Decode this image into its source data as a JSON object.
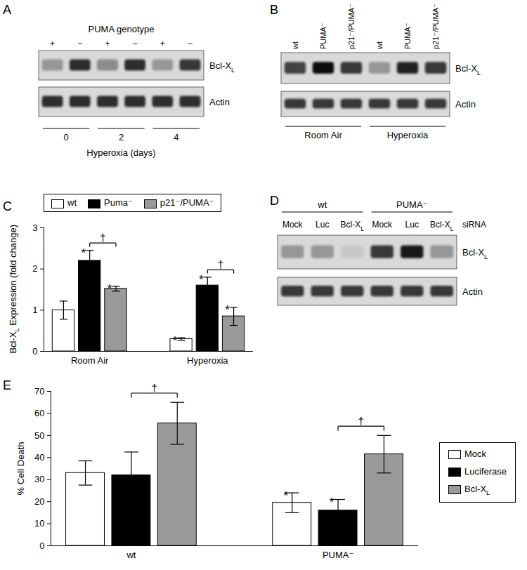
{
  "blots": [
    {
      "panel": "A",
      "header": "PUMA genotype",
      "lanes": [
        "+",
        "−",
        "+",
        "−",
        "+",
        "−"
      ],
      "rows": [
        {
          "label": "Bcl-XL",
          "bands": [
            0.35,
            0.85,
            0.4,
            0.85,
            0.3,
            0.8
          ]
        },
        {
          "label": "Actin",
          "bands": [
            0.85,
            0.85,
            0.85,
            0.85,
            0.85,
            0.85
          ]
        }
      ],
      "groups": [
        "0",
        "2",
        "4"
      ],
      "group_title": "Hyperoxia (days)"
    },
    {
      "panel": "B",
      "lanes": [
        "wt",
        "PUMA⁻",
        "p21⁻/PUMA⁻",
        "wt",
        "PUMA⁻",
        "p21⁻/PUMA⁻"
      ],
      "rows": [
        {
          "label": "Bcl-XL",
          "bands": [
            0.75,
            1.0,
            0.8,
            0.3,
            0.9,
            0.8
          ]
        },
        {
          "label": "Actin",
          "bands": [
            0.8,
            0.8,
            0.8,
            0.8,
            0.8,
            0.8
          ]
        }
      ],
      "groups": [
        "Room Air",
        "Hyperoxia"
      ]
    },
    {
      "panel": "D",
      "groups": [
        "wt",
        "PUMA⁻"
      ],
      "lanes": [
        "Mock",
        "Luc",
        "Bcl-XL",
        "Mock",
        "Luc",
        "Bcl-XL"
      ],
      "lane_title": "siRNA",
      "rows": [
        {
          "label": "Bcl-XL",
          "bands": [
            0.3,
            0.35,
            0.08,
            0.8,
            0.95,
            0.35
          ]
        },
        {
          "label": "Actin",
          "bands": [
            0.8,
            0.8,
            0.8,
            0.8,
            0.8,
            0.8
          ]
        }
      ]
    }
  ],
  "chart_data": [
    {
      "panel": "C",
      "type": "bar",
      "categories": [
        "Room Air",
        "Hyperoxia"
      ],
      "y_label": "Bcl-XL Expression (fold change)",
      "series": [
        {
          "name": "wt",
          "color": "#ffffff",
          "values": [
            1.0,
            0.3
          ],
          "errors": [
            0.22,
            0.03
          ]
        },
        {
          "name": "Puma⁻",
          "color": "#000000",
          "values": [
            2.2,
            1.6
          ],
          "errors": [
            0.25,
            0.2
          ]
        },
        {
          "name": "p21⁻/PUMA⁻",
          "color": "#999999",
          "values": [
            1.52,
            0.85
          ],
          "errors": [
            0.06,
            0.22
          ]
        }
      ],
      "ylim": [
        0,
        3
      ],
      "yticks": [
        0,
        1,
        2,
        3
      ],
      "legend": "top",
      "annotations": [
        {
          "text": "*",
          "series": "Puma⁻",
          "category": "Room Air"
        },
        {
          "text": "*",
          "series": "p21⁻/PUMA⁻",
          "category": "Room Air"
        },
        {
          "text": "*",
          "series": "wt",
          "category": "Hyperoxia"
        },
        {
          "text": "*",
          "series": "Puma⁻",
          "category": "Hyperoxia"
        },
        {
          "text": "*",
          "series": "p21⁻/PUMA⁻",
          "category": "Hyperoxia"
        }
      ],
      "brackets": [
        {
          "text": "†",
          "from": "Puma⁻",
          "to": "p21⁻/PUMA⁻",
          "category": "Room Air"
        },
        {
          "text": "†",
          "from": "Puma⁻",
          "to": "p21⁻/PUMA⁻",
          "category": "Hyperoxia"
        }
      ]
    },
    {
      "panel": "E",
      "type": "bar",
      "categories": [
        "wt",
        "PUMA⁻"
      ],
      "y_label": "% Cell Death",
      "series": [
        {
          "name": "Mock",
          "color": "#ffffff",
          "values": [
            33,
            19.5
          ],
          "errors": [
            5.5,
            4.5
          ]
        },
        {
          "name": "Luciferase",
          "color": "#000000",
          "values": [
            32,
            16
          ],
          "errors": [
            10.5,
            5
          ]
        },
        {
          "name": "Bcl-XL",
          "color": "#999999",
          "values": [
            55.5,
            41.5
          ],
          "errors": [
            9.5,
            8.5
          ]
        }
      ],
      "ylim": [
        0,
        70
      ],
      "yticks": [
        0,
        10,
        20,
        30,
        40,
        50,
        60,
        70
      ],
      "legend": "right",
      "annotations": [
        {
          "text": "*",
          "series": "Mock",
          "category": "PUMA⁻"
        },
        {
          "text": "*",
          "series": "Luciferase",
          "category": "PUMA⁻"
        }
      ],
      "brackets": [
        {
          "text": "†",
          "from": "Luciferase",
          "to": "Bcl-XL",
          "category": "wt"
        },
        {
          "text": "†",
          "from": "Luciferase",
          "to": "Bcl-XL",
          "category": "PUMA⁻"
        }
      ]
    }
  ]
}
